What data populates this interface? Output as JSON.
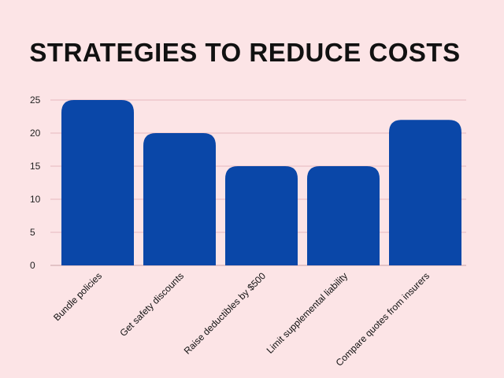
{
  "chart_data": {
    "type": "bar",
    "title": "STRATEGIES TO REDUCE COSTS",
    "xlabel": "",
    "ylabel": "",
    "categories": [
      "Bundle policies",
      "Get safety discounts",
      "Raise deductibles by $500",
      "Limit supplemental liability",
      "Compare quotes from insurers"
    ],
    "values": [
      25,
      20,
      15,
      15,
      22
    ],
    "ylim": [
      0,
      25
    ],
    "yticks": [
      0,
      5,
      10,
      15,
      20,
      25
    ],
    "grid": true,
    "legend": "none",
    "bar_color": "#0a47a8",
    "background_color": "#fce4e6"
  }
}
